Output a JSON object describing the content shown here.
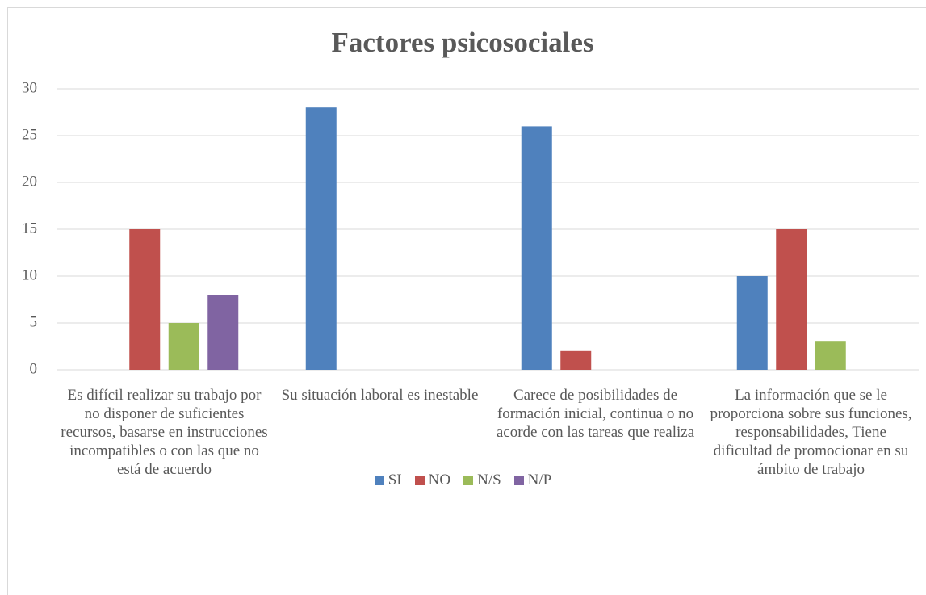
{
  "chart_data": {
    "type": "bar",
    "title": "Factores psicosociales",
    "categories": [
      "Es difícil realizar su trabajo por no disponer de suficientes recursos, basarse en instrucciones incompatibles o con las que no está de acuerdo",
      "Su situación laboral es inestable",
      "Carece de posibilidades de formación inicial, continua o no acorde con las tareas que realiza",
      "La información que se le proporciona sobre sus funciones, responsabilidades, Tiene dificultad de promocionar en su ámbito de trabajo"
    ],
    "series": [
      {
        "name": "SI",
        "color": "#4f81bd",
        "values": [
          null,
          28,
          26,
          10
        ]
      },
      {
        "name": "NO",
        "color": "#c0504d",
        "values": [
          15,
          null,
          2,
          15
        ]
      },
      {
        "name": "N/S",
        "color": "#9bbb59",
        "values": [
          5,
          null,
          null,
          3
        ]
      },
      {
        "name": "N/P",
        "color": "#8064a2",
        "values": [
          8,
          null,
          null,
          null
        ]
      }
    ],
    "ylim": [
      0,
      30
    ],
    "yticks": [
      0,
      5,
      10,
      15,
      20,
      25,
      30
    ],
    "grid": true,
    "legend": "bottom"
  }
}
